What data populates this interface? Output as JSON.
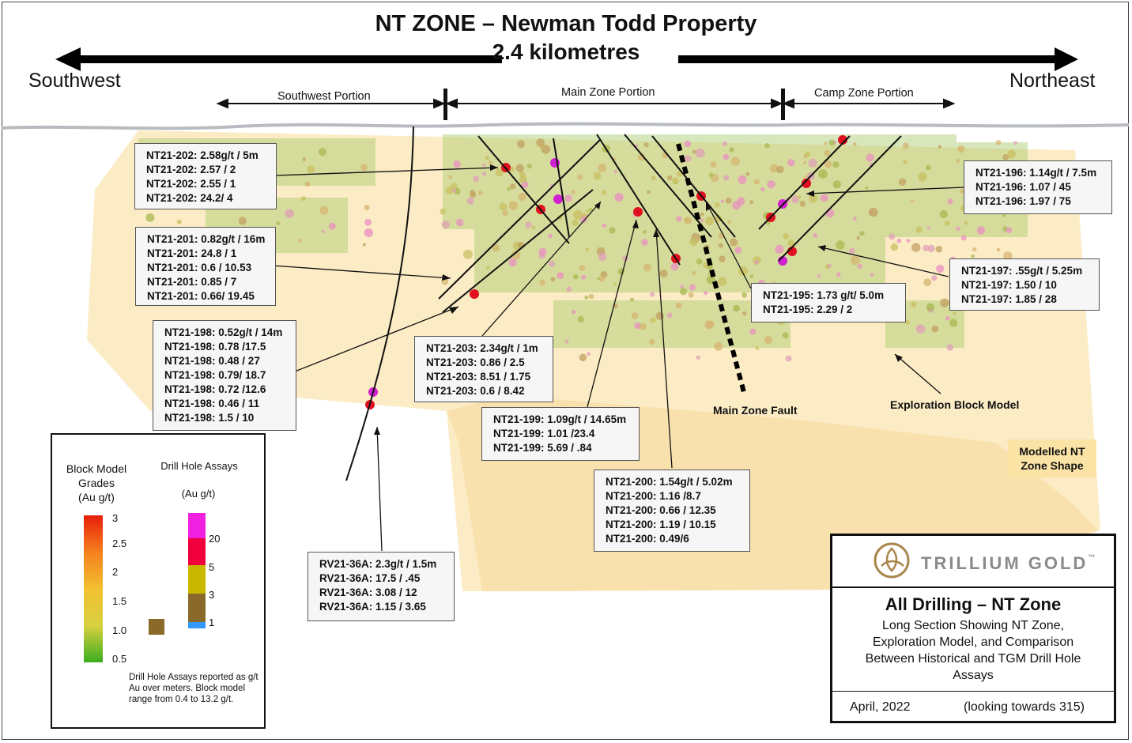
{
  "header": {
    "title": "NT ZONE – Newman Todd Property",
    "distance": "2.4 kilometres",
    "left_direction": "Southwest",
    "right_direction": "Northeast"
  },
  "portions": [
    {
      "label": "Southwest Portion"
    },
    {
      "label": "Main Zone Portion"
    },
    {
      "label": "Camp Zone Portion"
    }
  ],
  "callouts": [
    {
      "hole": "NT21-202",
      "lines": [
        "NT21-202: 2.58g/t / 5m",
        "NT21-202: 2.57 / 2",
        "NT21-202: 2.55 / 1",
        "NT21-202: 24.2/ 4"
      ]
    },
    {
      "hole": "NT21-201",
      "lines": [
        "NT21-201: 0.82g/t / 16m",
        "NT21-201: 24.8 / 1",
        "NT21-201: 0.6 / 10.53",
        "NT21-201: 0.85 / 7",
        "NT21-201: 0.66/ 19.45"
      ]
    },
    {
      "hole": "NT21-198",
      "lines": [
        "NT21-198: 0.52g/t / 14m",
        "NT21-198: 0.78 /17.5",
        "NT21-198: 0.48  / 27",
        "NT21-198: 0.79/ 18.7",
        "NT21-198: 0.72 /12.6",
        "NT21-198: 0.46  / 11",
        "NT21-198: 1.5 / 10"
      ]
    },
    {
      "hole": "NT21-203",
      "lines": [
        "NT21-203: 2.34g/t / 1m",
        "NT21-203: 0.86 / 2.5",
        "NT21-203: 8.51 / 1.75",
        "NT21-203: 0.6 / 8.42"
      ]
    },
    {
      "hole": "NT21-199",
      "lines": [
        "NT21-199: 1.09g/t / 14.65m",
        "NT21-199: 1.01 /23.4",
        "NT21-199: 5.69  / .84"
      ]
    },
    {
      "hole": "NT21-200",
      "lines": [
        "NT21-200: 1.54g/t / 5.02m",
        "NT21-200: 1.16 /8.7",
        "NT21-200: 0.66  / 12.35",
        "NT21-200: 1.19 / 10.15",
        "NT21-200: 0.49/6"
      ]
    },
    {
      "hole": "RV21-36A",
      "lines": [
        "RV21-36A: 2.3g/t / 1.5m",
        "RV21-36A: 17.5  / .45",
        "RV21-36A: 3.08 / 12",
        "RV21-36A: 1.15 / 3.65"
      ]
    },
    {
      "hole": "NT21-195",
      "lines": [
        "NT21-195: 1.73 g/t/ 5.0m",
        "NT21-195: 2.29 / 2"
      ]
    },
    {
      "hole": "NT21-196",
      "lines": [
        "NT21-196: 1.14g/t / 7.5m",
        "NT21-196: 1.07 / 45",
        "NT21-196: 1.97  / 75"
      ]
    },
    {
      "hole": "NT21-197",
      "lines": [
        "NT21-197: .55g/t / 5.25m",
        "NT21-197: 1.50 / 10",
        "NT21-197: 1.85 / 28"
      ]
    }
  ],
  "labels": {
    "fault": "Main Zone Fault",
    "block_model": "Exploration Block Model",
    "modelled_shape": [
      "Modelled NT",
      "Zone Shape"
    ]
  },
  "legend": {
    "block_title": [
      "Block Model",
      "Grades",
      "(Au g/t)"
    ],
    "assay_title": "Drill Hole Assays",
    "assay_unit": "(Au g/t)",
    "block_ticks": [
      "3",
      "2.5",
      "2",
      "1.5",
      "1.0",
      "0.5"
    ],
    "assay_ticks": [
      "20",
      "5",
      "3",
      "1"
    ],
    "assay_colors": [
      "#f020e0",
      "#f0003c",
      "#c9b800",
      "#8a6a2a",
      "#3399ff"
    ],
    "block_gradient": [
      "#e81e0a",
      "#f5801e",
      "#f2c030",
      "#d8d040",
      "#3cae1e"
    ],
    "note": "Drill Hole Assays reported as g/t Au over meters. Block model range from 0.4 to 13.2 g/t."
  },
  "titlebox": {
    "company": "TRILLIUM GOLD",
    "trademark": "™",
    "heading": "All Drilling – NT Zone",
    "subtitle": [
      "Long Section Showing NT Zone,",
      "Exploration Model, and Comparison",
      "Between Historical and TGM Drill Hole",
      "Assays"
    ],
    "date": "April, 2022",
    "orientation": "(looking towards 315)"
  }
}
